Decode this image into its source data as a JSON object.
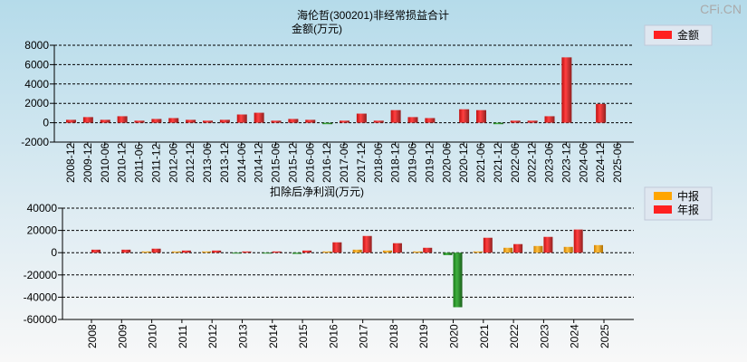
{
  "watermark": "CFi.CN",
  "chart_data": [
    {
      "type": "bar",
      "title": "海伦哲(300201)非经常损益合计",
      "ylabel": "金额(万元)",
      "ylim": [
        -2000,
        8000
      ],
      "yticks": [
        8000,
        6000,
        4000,
        2000,
        0,
        -2000
      ],
      "legend": [
        "金额"
      ],
      "legend_position": "top-right",
      "grid": true,
      "categories": [
        "2008-12",
        "2009-12",
        "2010-06",
        "2010-12",
        "2011-06",
        "2011-12",
        "2012-06",
        "2012-12",
        "2013-06",
        "2013-12",
        "2014-06",
        "2014-12",
        "2015-06",
        "2015-12",
        "2016-06",
        "2016-12",
        "2017-06",
        "2017-12",
        "2018-06",
        "2018-12",
        "2019-06",
        "2019-12",
        "2020-06",
        "2020-12",
        "2021-06",
        "2021-12",
        "2022-06",
        "2022-12",
        "2023-06",
        "2023-12",
        "2024-06",
        "2024-12",
        "2025-06"
      ],
      "series": [
        {
          "name": "金额",
          "values": [
            300,
            580,
            300,
            670,
            210,
            390,
            480,
            300,
            210,
            300,
            850,
            1030,
            210,
            390,
            300,
            -150,
            210,
            940,
            210,
            1300,
            580,
            480,
            0,
            1390,
            1300,
            -150,
            210,
            210,
            670,
            6750,
            0,
            1940,
            0
          ]
        }
      ]
    },
    {
      "type": "bar",
      "title": "扣除后净利润(万元)",
      "ylim": [
        -60000,
        40000
      ],
      "yticks": [
        40000,
        20000,
        0,
        -20000,
        -40000,
        -60000
      ],
      "legend": [
        "中报",
        "年报"
      ],
      "legend_position": "top-right",
      "grid": true,
      "categories": [
        "2008",
        "2009",
        "2010",
        "2011",
        "2012",
        "2013",
        "2014",
        "2015",
        "2016",
        "2017",
        "2018",
        "2019",
        "2020",
        "2021",
        "2022",
        "2023",
        "2024",
        "2025"
      ],
      "series": [
        {
          "name": "中报",
          "values": [
            0,
            0,
            1100,
            1100,
            1100,
            -300,
            -300,
            -1100,
            1100,
            2700,
            1900,
            1100,
            -2200,
            1100,
            4400,
            6000,
            5200,
            6800
          ]
        },
        {
          "name": "年报",
          "values": [
            2700,
            2700,
            3600,
            1900,
            1900,
            1100,
            1100,
            1900,
            9300,
            15000,
            8500,
            4400,
            -49000,
            13400,
            7700,
            14200,
            20800,
            null
          ]
        }
      ]
    }
  ],
  "colors": {
    "red": "#ff2020",
    "orange": "#ffa500",
    "green": "#2e9a2e"
  }
}
